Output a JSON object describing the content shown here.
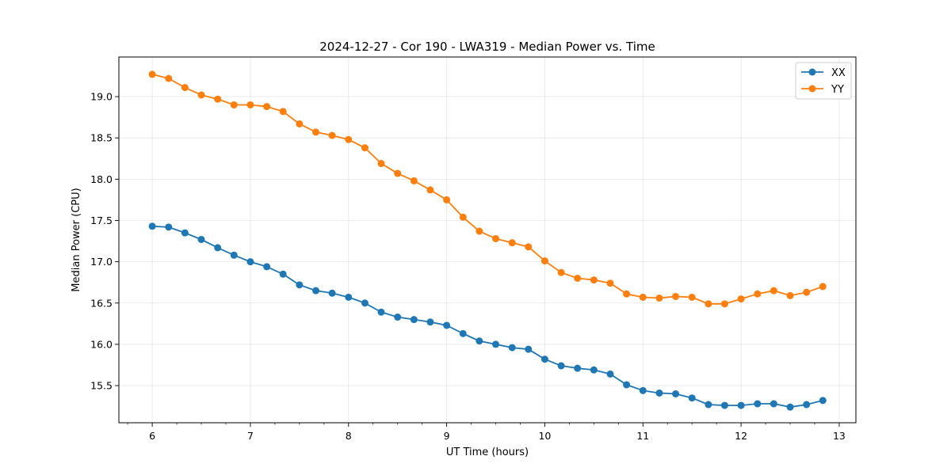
{
  "chart_data": {
    "type": "line",
    "title": "2024-12-27 - Cor 190 - LWA319 - Median Power vs. Time",
    "xlabel": "UT Time (hours)",
    "ylabel": "Median Power (CPU)",
    "xlim": [
      5.66,
      13.17
    ],
    "ylim": [
      15.05,
      19.48
    ],
    "xticks": [
      6,
      7,
      8,
      9,
      10,
      11,
      12,
      13
    ],
    "xtick_labels": [
      "6",
      "7",
      "8",
      "9",
      "10",
      "11",
      "12",
      "13"
    ],
    "yticks": [
      15.5,
      16.0,
      16.5,
      17.0,
      17.5,
      18.0,
      18.5,
      19.0
    ],
    "ytick_labels": [
      "15.5",
      "16.0",
      "16.5",
      "17.0",
      "17.5",
      "18.0",
      "18.5",
      "19.0"
    ],
    "grid": true,
    "legend_position": "top-right",
    "x": [
      6.0,
      6.167,
      6.333,
      6.5,
      6.667,
      6.833,
      7.0,
      7.167,
      7.333,
      7.5,
      7.667,
      7.833,
      8.0,
      8.167,
      8.333,
      8.5,
      8.667,
      8.833,
      9.0,
      9.167,
      9.333,
      9.5,
      9.667,
      9.833,
      10.0,
      10.167,
      10.333,
      10.5,
      10.667,
      10.833,
      11.0,
      11.167,
      11.333,
      11.5,
      11.667,
      11.833,
      12.0,
      12.167,
      12.333,
      12.5,
      12.667,
      12.833
    ],
    "series": [
      {
        "name": "XX",
        "color": "#1f77b4",
        "values": [
          17.43,
          17.42,
          17.35,
          17.27,
          17.17,
          17.08,
          17.0,
          16.94,
          16.85,
          16.72,
          16.65,
          16.62,
          16.57,
          16.5,
          16.39,
          16.33,
          16.3,
          16.27,
          16.23,
          16.13,
          16.04,
          16.0,
          15.96,
          15.94,
          15.82,
          15.74,
          15.71,
          15.69,
          15.64,
          15.51,
          15.44,
          15.41,
          15.4,
          15.35,
          15.27,
          15.26,
          15.26,
          15.28,
          15.28,
          15.24,
          15.27,
          15.32
        ]
      },
      {
        "name": "YY",
        "color": "#ff7f0e",
        "values": [
          19.27,
          19.22,
          19.11,
          19.02,
          18.97,
          18.9,
          18.9,
          18.88,
          18.82,
          18.67,
          18.57,
          18.53,
          18.48,
          18.38,
          18.19,
          18.07,
          17.98,
          17.87,
          17.75,
          17.54,
          17.37,
          17.28,
          17.23,
          17.18,
          17.01,
          16.87,
          16.8,
          16.78,
          16.74,
          16.61,
          16.57,
          16.56,
          16.58,
          16.57,
          16.49,
          16.49,
          16.55,
          16.61,
          16.65,
          16.59,
          16.63,
          16.7
        ]
      }
    ]
  }
}
